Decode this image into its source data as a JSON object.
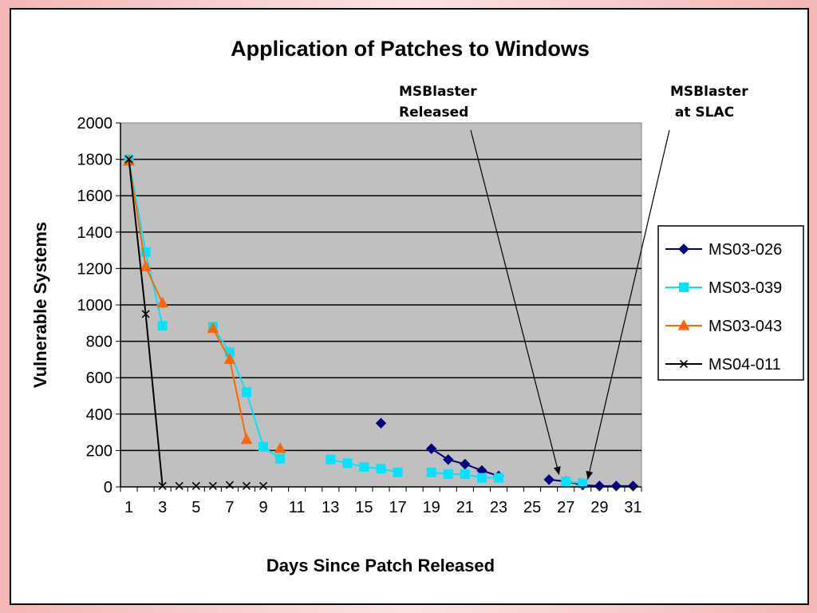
{
  "chart_data": {
    "type": "line",
    "title": "Application of Patches to Windows",
    "xlabel": "Days Since Patch Released",
    "ylabel": "Vulnerable Systems",
    "xlim": [
      1,
      31
    ],
    "ylim": [
      0,
      2000
    ],
    "x_ticks": [
      "1",
      "3",
      "5",
      "7",
      "9",
      "11",
      "13",
      "15",
      "17",
      "19",
      "21",
      "23",
      "25",
      "27",
      "29",
      "31"
    ],
    "y_ticks": [
      "0",
      "200",
      "400",
      "600",
      "800",
      "1000",
      "1200",
      "1400",
      "1600",
      "1800",
      "2000"
    ],
    "grid": "horizontal",
    "legend_position": "right",
    "plot_background": "#c0c0c0",
    "series": [
      {
        "name": "MS03-026",
        "color": "#000080",
        "marker": "diamond",
        "segments": [
          [
            [
              16,
              350
            ]
          ],
          [
            [
              19,
              210
            ],
            [
              20,
              150
            ],
            [
              21,
              125
            ],
            [
              22,
              90
            ],
            [
              23,
              60
            ]
          ],
          [
            [
              26,
              40
            ],
            [
              27,
              30
            ],
            [
              28,
              10
            ],
            [
              29,
              5
            ],
            [
              30,
              5
            ],
            [
              31,
              5
            ]
          ]
        ]
      },
      {
        "name": "MS03-039",
        "color": "#00e5ff",
        "marker": "square",
        "segments": [
          [
            [
              1,
              1800
            ],
            [
              2,
              1290
            ],
            [
              3,
              885
            ]
          ],
          [
            [
              6,
              880
            ],
            [
              7,
              740
            ],
            [
              8,
              520
            ],
            [
              9,
              220
            ],
            [
              10,
              155
            ]
          ],
          [
            [
              13,
              150
            ],
            [
              14,
              130
            ],
            [
              15,
              110
            ],
            [
              16,
              100
            ],
            [
              17,
              80
            ]
          ],
          [
            [
              19,
              80
            ],
            [
              20,
              70
            ],
            [
              21,
              70
            ],
            [
              22,
              50
            ],
            [
              23,
              50
            ]
          ],
          [
            [
              27,
              30
            ],
            [
              28,
              20
            ]
          ]
        ]
      },
      {
        "name": "MS03-043",
        "color": "#ff6600",
        "marker": "triangle",
        "segments": [
          [
            [
              1,
              1790
            ],
            [
              2,
              1210
            ],
            [
              3,
              1010
            ]
          ],
          [
            [
              6,
              870
            ],
            [
              7,
              700
            ],
            [
              8,
              260
            ]
          ],
          [
            [
              10,
              210
            ]
          ]
        ]
      },
      {
        "name": "MS04-011",
        "color": "#000000",
        "marker": "x",
        "segments": [
          [
            [
              1,
              1800
            ],
            [
              2,
              950
            ],
            [
              3,
              5
            ]
          ],
          [
            [
              4,
              5
            ]
          ],
          [
            [
              5,
              5
            ]
          ],
          [
            [
              6,
              5
            ]
          ],
          [
            [
              7,
              10
            ]
          ],
          [
            [
              8,
              5
            ]
          ],
          [
            [
              9,
              5
            ]
          ]
        ]
      }
    ],
    "annotations": [
      {
        "lines": [
          "MSBlaster",
          "Released"
        ],
        "target": [
          26.6,
          40
        ]
      },
      {
        "lines": [
          "MSBlaster",
          " at SLAC"
        ],
        "target": [
          28.3,
          15
        ]
      }
    ]
  }
}
